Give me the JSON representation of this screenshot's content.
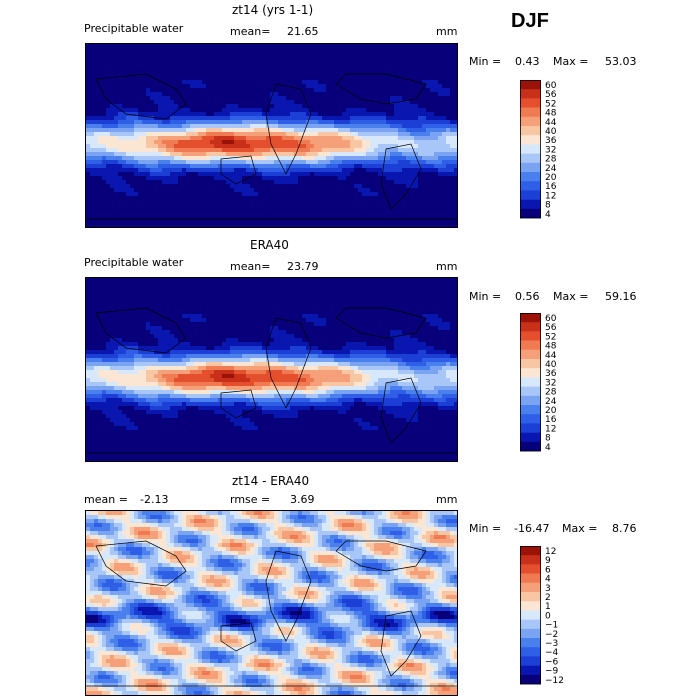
{
  "season": "DJF",
  "units": "mm",
  "panels": [
    {
      "title": "zt14 (yrs 1-1)",
      "field": "Precipitable water",
      "mean_label": "mean=",
      "mean": "21.65",
      "min_label": "Min =",
      "min": "0.43",
      "max_label": "Max =",
      "max": "53.03",
      "cbar_levels": [
        "60",
        "56",
        "52",
        "48",
        "44",
        "40",
        "36",
        "32",
        "28",
        "24",
        "20",
        "16",
        "12",
        "8",
        "4"
      ]
    },
    {
      "title": "ERA40",
      "field": "Precipitable water",
      "mean_label": "mean=",
      "mean": "23.79",
      "min_label": "Min =",
      "min": "0.56",
      "max_label": "Max =",
      "max": "59.16",
      "cbar_levels": [
        "60",
        "56",
        "52",
        "48",
        "44",
        "40",
        "36",
        "32",
        "28",
        "24",
        "20",
        "16",
        "12",
        "8",
        "4"
      ]
    },
    {
      "title": "zt14 - ERA40",
      "mean_label": "mean =",
      "mean": "-2.13",
      "rmse_label": "rmse =",
      "rmse": "3.69",
      "min_label": "Min =",
      "min": "-16.47",
      "max_label": "Max =",
      "max": "8.76",
      "cbar_levels": [
        "12",
        "9",
        "6",
        "4",
        "3",
        "2",
        "1",
        "0",
        "−1",
        "−2",
        "−3",
        "−4",
        "−6",
        "−9",
        "−12"
      ]
    }
  ],
  "colors": {
    "abs_scale": [
      "#08007a",
      "#0a16b0",
      "#1c3fd6",
      "#2f5fe6",
      "#4a7fee",
      "#7aa4f2",
      "#a8c6f7",
      "#d8e8fb",
      "#fbe6d4",
      "#f8c6a2",
      "#f6a07a",
      "#f07a52",
      "#e4502e",
      "#c8301a",
      "#9a1208"
    ],
    "diff_scale": [
      "#08007a",
      "#0a16b0",
      "#1c3fd6",
      "#2f5fe6",
      "#4a7fee",
      "#7aa4f2",
      "#a8c6f7",
      "#d8e8fb",
      "#fbe6d4",
      "#f8c6a2",
      "#f6a07a",
      "#f07a52",
      "#e4502e",
      "#c8301a",
      "#9a1208"
    ]
  },
  "chart_data": [
    {
      "type": "heatmap",
      "title": "zt14 (yrs 1-1)",
      "subtitle": "Precipitable water",
      "units": "mm",
      "mean": 21.65,
      "min": 0.43,
      "max": 53.03,
      "colorbar_levels": [
        4,
        8,
        12,
        16,
        20,
        24,
        28,
        32,
        36,
        40,
        44,
        48,
        52,
        56,
        60
      ]
    },
    {
      "type": "heatmap",
      "title": "ERA40",
      "subtitle": "Precipitable water",
      "units": "mm",
      "mean": 23.79,
      "min": 0.56,
      "max": 59.16,
      "colorbar_levels": [
        4,
        8,
        12,
        16,
        20,
        24,
        28,
        32,
        36,
        40,
        44,
        48,
        52,
        56,
        60
      ]
    },
    {
      "type": "heatmap",
      "title": "zt14 - ERA40",
      "units": "mm",
      "mean": -2.13,
      "rmse": 3.69,
      "min": -16.47,
      "max": 8.76,
      "colorbar_levels": [
        -12,
        -9,
        -6,
        -4,
        -3,
        -2,
        -1,
        0,
        1,
        2,
        3,
        4,
        6,
        9,
        12
      ]
    }
  ]
}
